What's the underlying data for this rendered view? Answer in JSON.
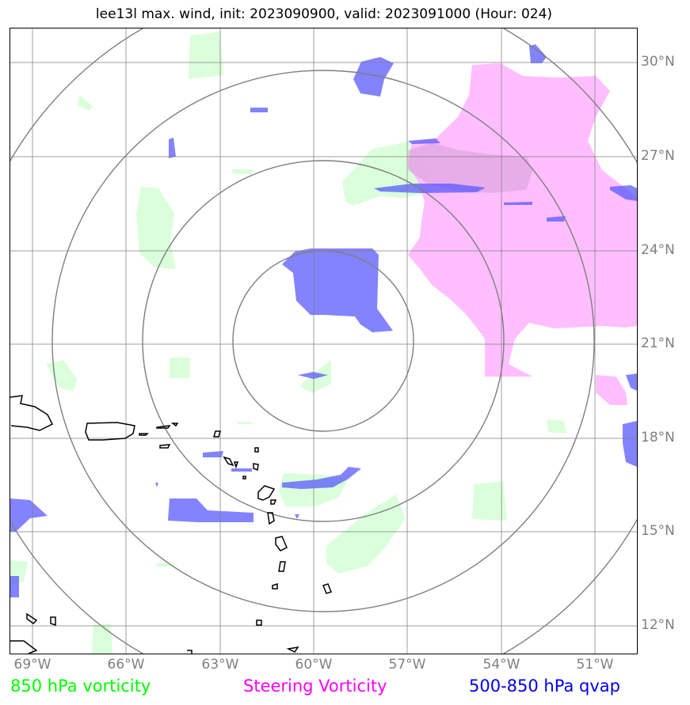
{
  "title": "lee13l max. wind, init: 2023090900, valid: 2023091000 (Hour: 024)",
  "lat_labels": [
    "30°N",
    "27°N",
    "24°N",
    "21°N",
    "18°N",
    "15°N",
    "12°N"
  ],
  "lon_labels": [
    "69°W",
    "66°W",
    "63°W",
    "60°W",
    "57°W",
    "54°W",
    "51°W"
  ],
  "legend": {
    "vorticity_850": "850 hPa vorticity",
    "steering_vorticity": "Steering Vorticity",
    "qvap": "500-850 hPa qvap"
  },
  "colors": {
    "vorticity_850": "#00ff00",
    "steering_vorticity": "#ff00ff",
    "qvap": "#0000ee",
    "grid": "#7f7f7f",
    "coast": "#000000"
  }
}
